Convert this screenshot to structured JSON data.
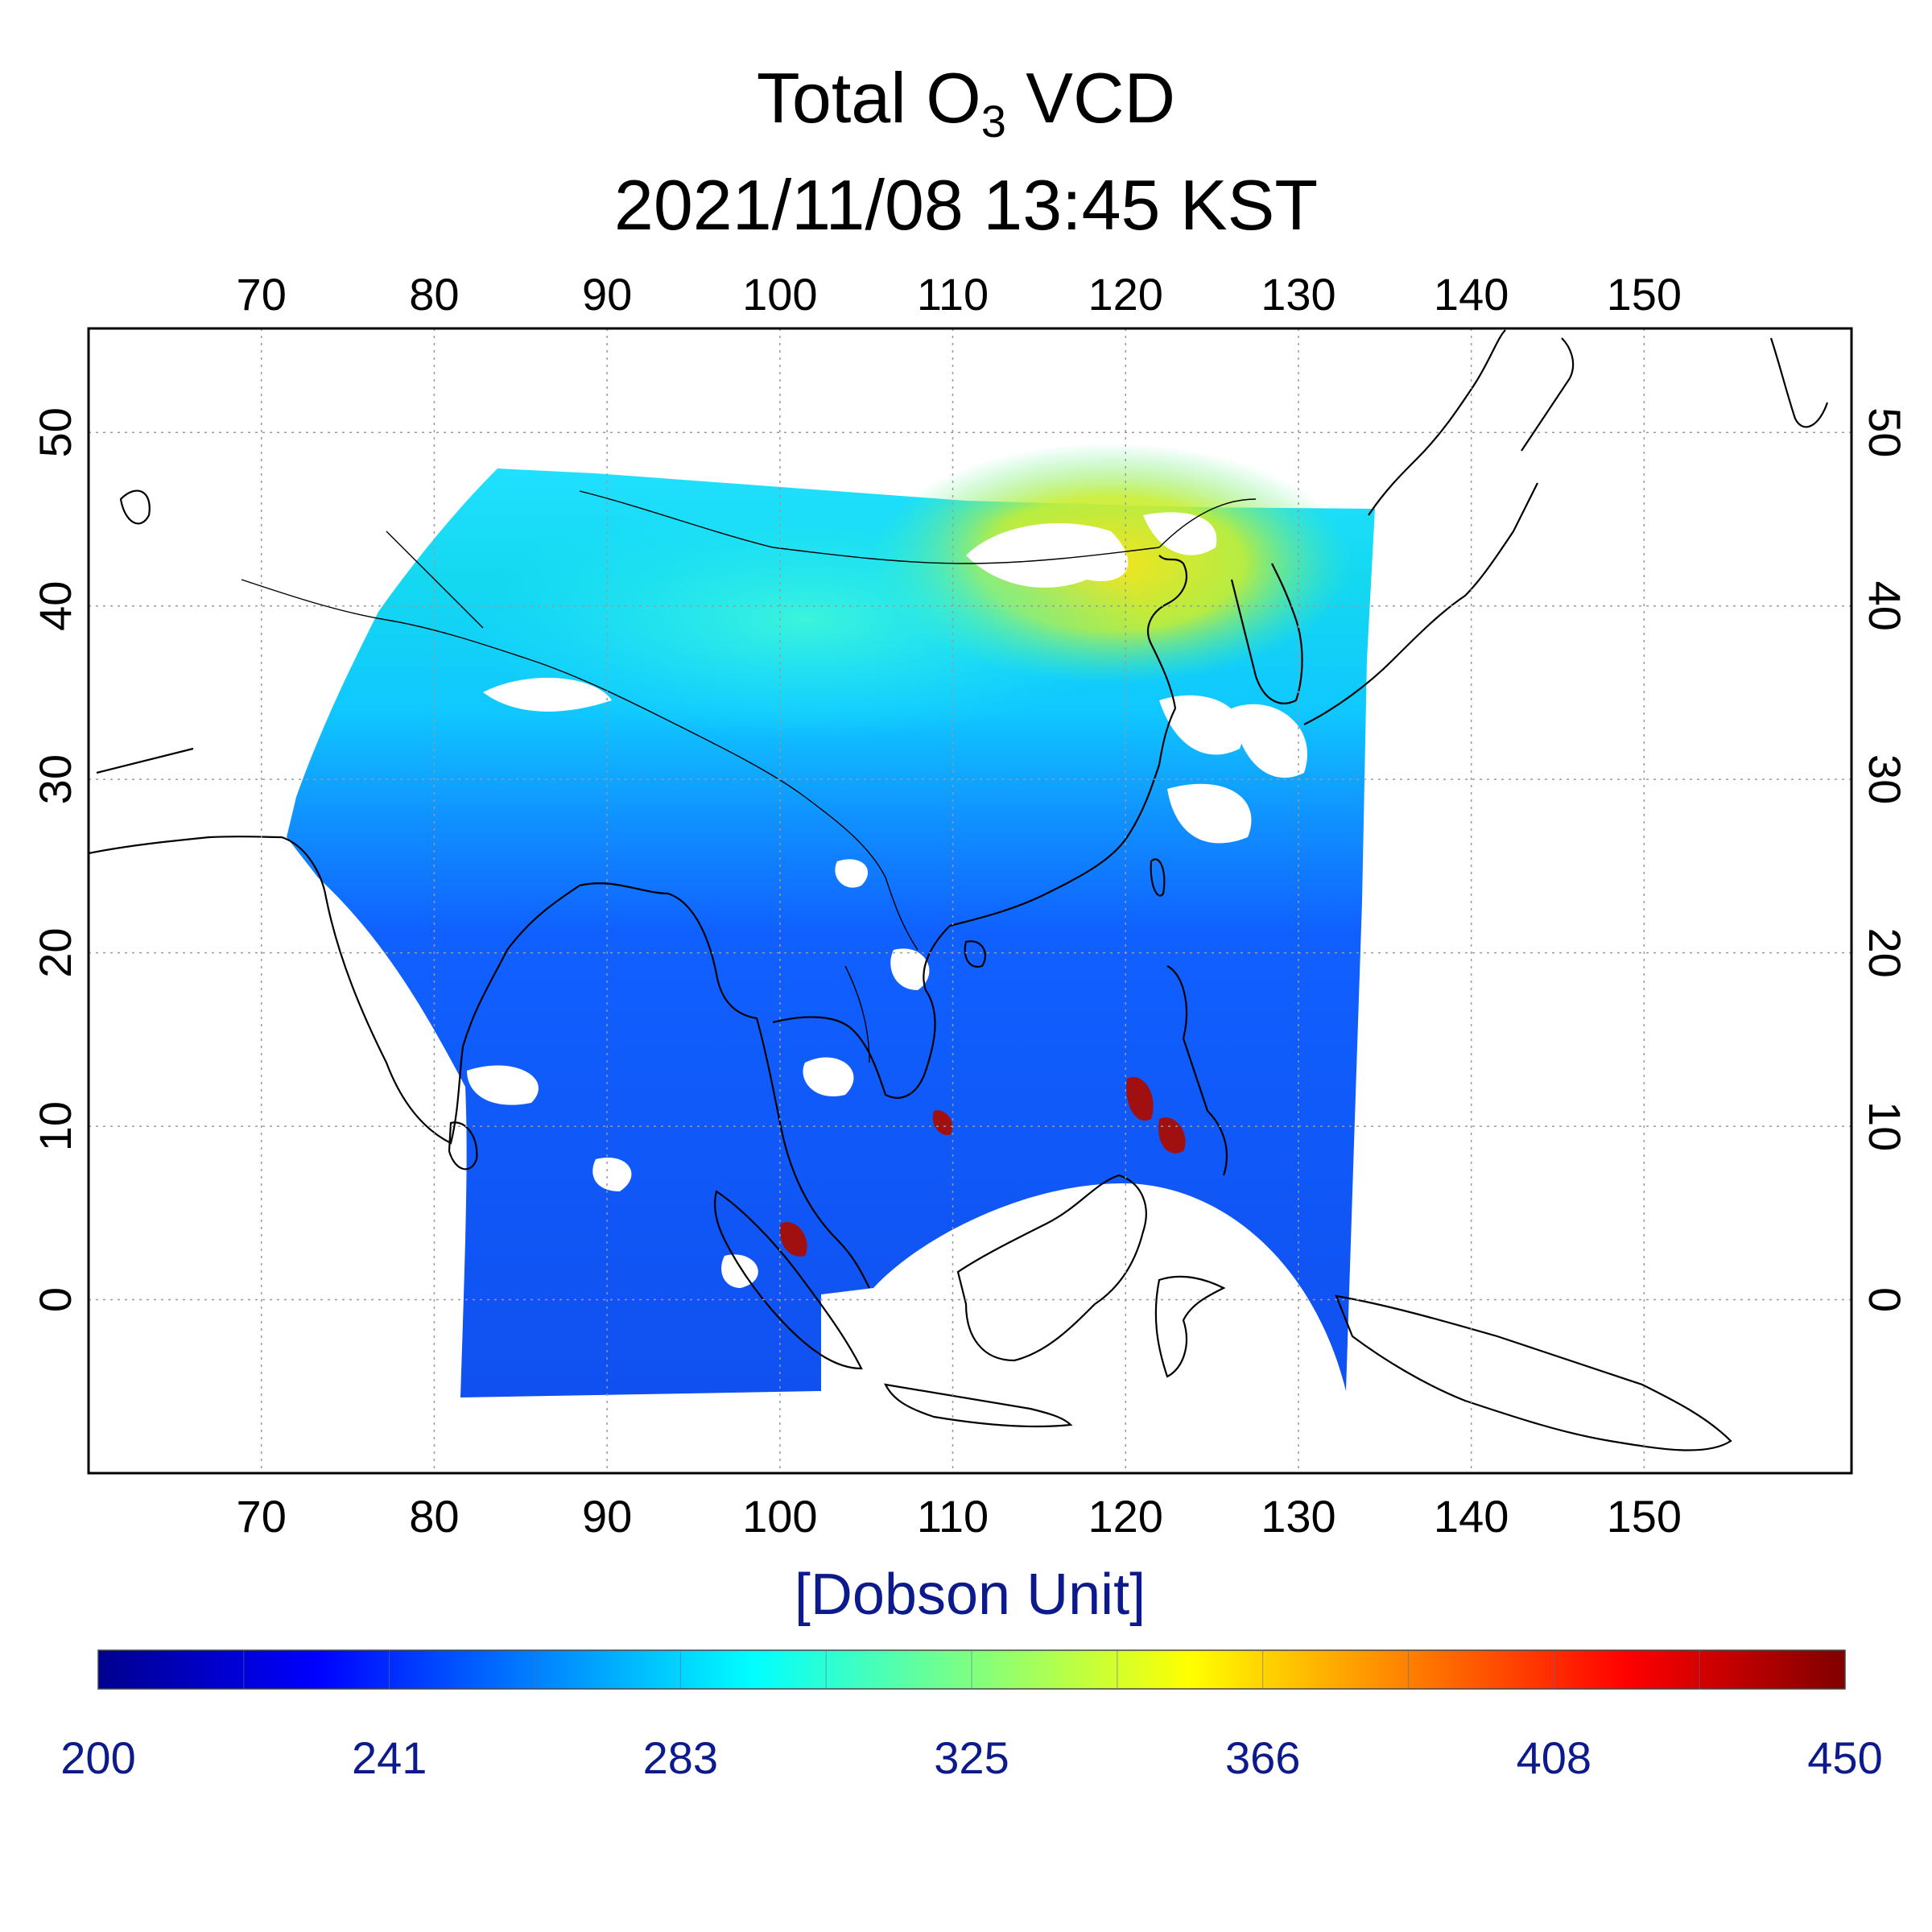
{
  "title": {
    "prefix": "Total O",
    "subscript": "3",
    "suffix": " VCD",
    "timestamp": "2021/11/08 13:45 KST"
  },
  "map": {
    "lon_range": [
      60,
      162
    ],
    "lat_range": [
      -10,
      56
    ],
    "lon_ticks": [
      70,
      80,
      90,
      100,
      110,
      120,
      130,
      140,
      150
    ],
    "lat_ticks": [
      0,
      10,
      20,
      30,
      40,
      50
    ],
    "grid": "dotted",
    "unit_label": "[Dobson Unit]"
  },
  "colorbar": {
    "min": 200,
    "max": 450,
    "tick_labels": [
      "200",
      "241",
      "283",
      "325",
      "366",
      "408",
      "450"
    ],
    "colormap": [
      "#00008f",
      "#0000ff",
      "#0080ff",
      "#00ffff",
      "#80ff80",
      "#ffff00",
      "#ff8000",
      "#ff0000",
      "#800000"
    ]
  },
  "colors": {
    "frame": "#000000",
    "grid": "#9a9a9a",
    "unit_text": "#0c1a8c"
  }
}
